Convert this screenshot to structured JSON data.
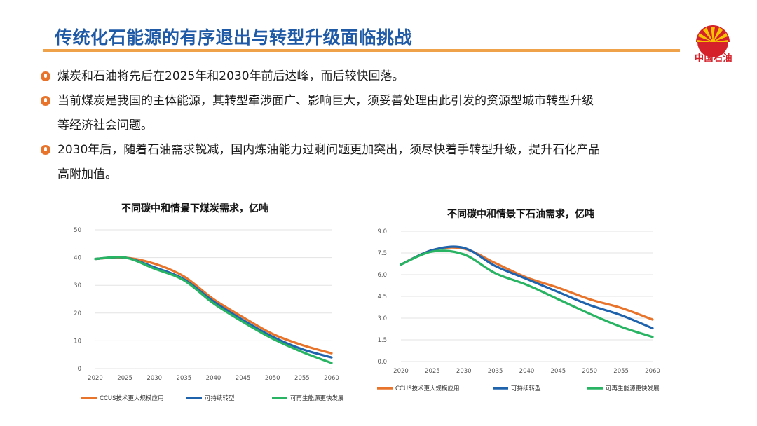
{
  "header": {
    "title": "传统化石能源的有序退出与转型升级面临挑战",
    "logo_text": "中国石油"
  },
  "bullets": [
    {
      "text": "煤炭和石油将先后在2025年和2030年前后达峰，而后较快回落。"
    },
    {
      "line1": "当前煤炭是我国的主体能源，其转型牵涉面广、影响巨大，须妥善处理由此引发的资源型城市转型升级",
      "line2": "等经济社会问题。"
    },
    {
      "line1": "2030年后，随着石油需求锐减，国内炼油能力过剩问题更加突出，须尽快着手转型升级，提升石化产品",
      "line2": "高附加值。"
    }
  ],
  "colors": {
    "accent": "#f0a24a",
    "title": "#1f5aa6",
    "logo": "#d4212a",
    "series": [
      "#e8742b",
      "#1f63ad",
      "#28b463"
    ]
  },
  "chart_data": [
    {
      "type": "line",
      "title": "不同碳中和情景下煤炭需求，亿吨",
      "x": [
        2020,
        2025,
        2030,
        2035,
        2040,
        2045,
        2050,
        2055,
        2060
      ],
      "xticks": [
        "2020",
        "2025",
        "2030",
        "2035",
        "2040",
        "2045",
        "2050",
        "2055",
        "2060"
      ],
      "yticks": [
        "0",
        "10",
        "20",
        "30",
        "40",
        "50"
      ],
      "ylim": [
        0,
        50
      ],
      "grid": true,
      "legend_position": "bottom",
      "series": [
        {
          "name": "CCUS技术更大规模应用",
          "values": [
            39.5,
            40,
            37.8,
            33.2,
            25,
            18.5,
            12.5,
            8.5,
            5.5
          ]
        },
        {
          "name": "可持续转型",
          "values": [
            39.5,
            40,
            36.5,
            32.2,
            24.2,
            17.5,
            11.5,
            7,
            4
          ]
        },
        {
          "name": "可再生能源更快发展",
          "values": [
            39.5,
            40,
            36,
            31.8,
            23.5,
            16.8,
            10.8,
            6,
            2
          ]
        }
      ]
    },
    {
      "type": "line",
      "title": "不同碳中和情景下石油需求，亿吨",
      "x": [
        2020,
        2025,
        2030,
        2035,
        2040,
        2045,
        2050,
        2055,
        2060
      ],
      "xticks": [
        "2020",
        "2025",
        "2030",
        "2035",
        "2040",
        "2045",
        "2050",
        "2055",
        "2060"
      ],
      "yticks": [
        "0.0",
        "1.5",
        "3.0",
        "4.5",
        "6.0",
        "7.5",
        "9.0"
      ],
      "ylim": [
        0,
        9
      ],
      "grid": true,
      "legend_position": "bottom",
      "series": [
        {
          "name": "CCUS技术更大规模应用",
          "values": [
            6.7,
            7.7,
            7.8,
            6.8,
            5.8,
            5.1,
            4.3,
            3.7,
            2.9
          ]
        },
        {
          "name": "可持续转型",
          "values": [
            6.7,
            7.7,
            7.85,
            6.6,
            5.7,
            4.8,
            3.9,
            3.2,
            2.3
          ]
        },
        {
          "name": "可再生能源更快发展",
          "values": [
            6.7,
            7.6,
            7.4,
            6.1,
            5.3,
            4.3,
            3.3,
            2.4,
            1.7
          ]
        }
      ]
    }
  ]
}
